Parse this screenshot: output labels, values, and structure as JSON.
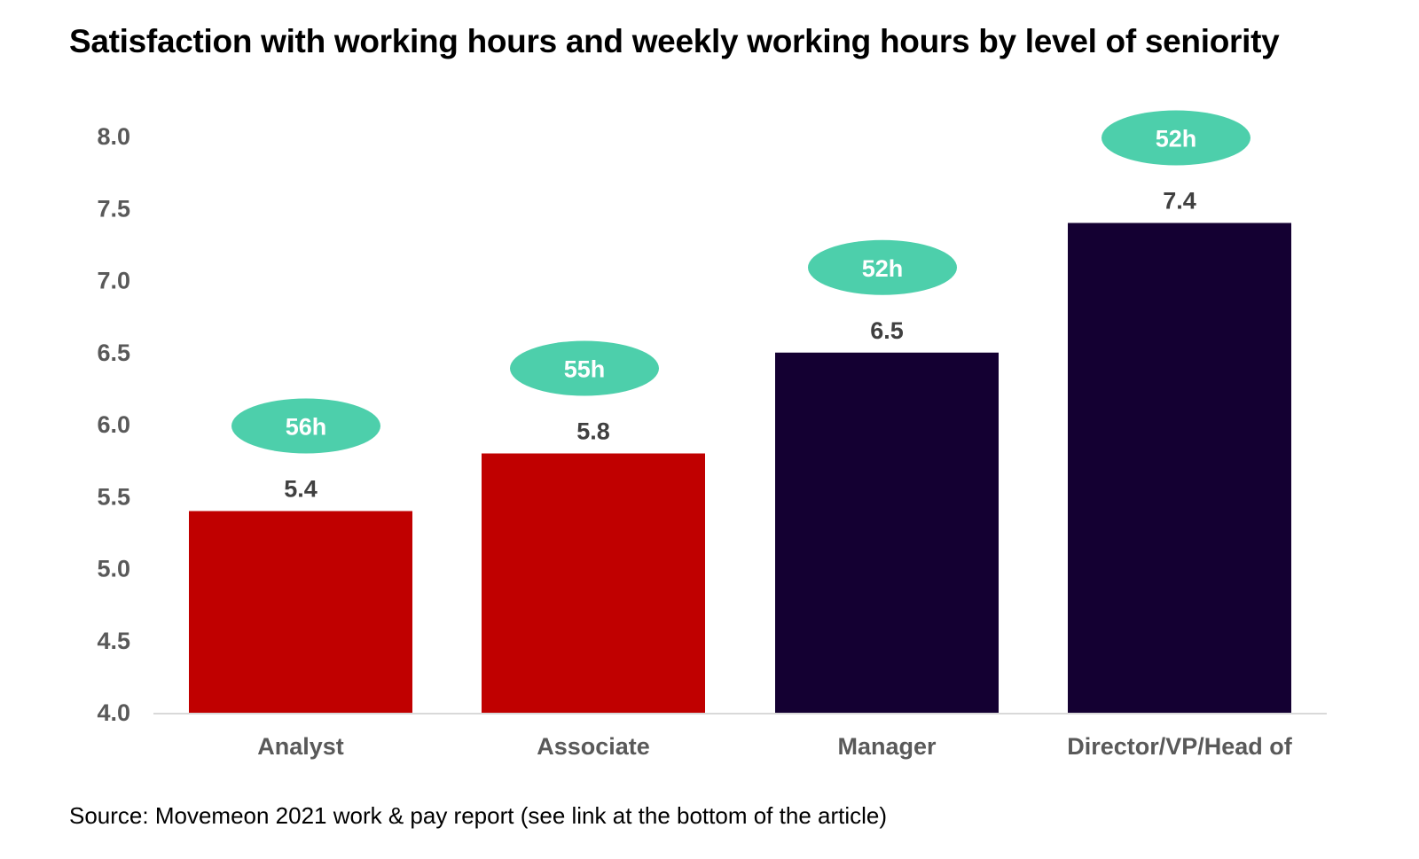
{
  "chart_data": {
    "type": "bar",
    "title": "Satisfaction with working hours and weekly working hours by level of seniority",
    "categories": [
      "Analyst",
      "Associate",
      "Manager",
      "Director/VP/Head of"
    ],
    "values": [
      5.4,
      5.8,
      6.5,
      7.4
    ],
    "value_labels": [
      "5.4",
      "5.8",
      "6.5",
      "7.4"
    ],
    "hours_labels": [
      "56h",
      "55h",
      "52h",
      "52h"
    ],
    "bar_colors": [
      "#c00000",
      "#c00000",
      "#140032",
      "#140032"
    ],
    "hours_bubble_color": "#4dcfab",
    "ylim": [
      4.0,
      8.0
    ],
    "yticks": [
      "4.0",
      "4.5",
      "5.0",
      "5.5",
      "6.0",
      "6.5",
      "7.0",
      "7.5",
      "8.0"
    ],
    "xlabel": "",
    "ylabel": "",
    "grid": false,
    "source": "Source: Movemeon 2021 work & pay report (see link at the bottom of the article)"
  }
}
